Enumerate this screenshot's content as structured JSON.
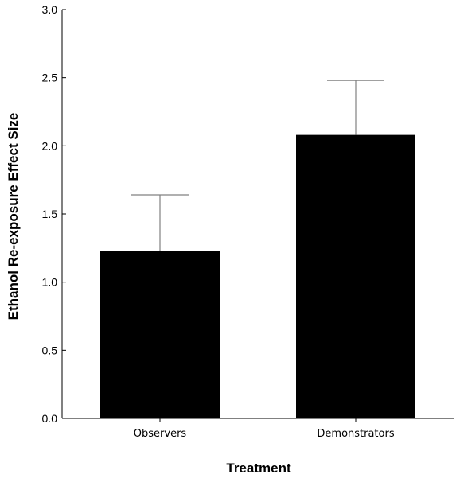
{
  "chart_data": {
    "type": "bar",
    "categories": [
      "Observers",
      "Demonstrators"
    ],
    "values": [
      1.23,
      2.08
    ],
    "errors": [
      0.41,
      0.4
    ],
    "title": "",
    "xlabel": "Treatment",
    "ylabel": "Ethanol Re-exposure Effect Size",
    "ylim": [
      0,
      3.0
    ],
    "yticks": [
      0.0,
      0.5,
      1.0,
      1.5,
      2.0,
      2.5,
      3.0
    ],
    "ytick_labels": [
      "0.0",
      "0.5",
      "1.0",
      "1.5",
      "2.0",
      "2.5",
      "3.0"
    ],
    "grid": false,
    "legend": "none",
    "bar_color": "#000000",
    "error_bar_color": "#808080"
  }
}
